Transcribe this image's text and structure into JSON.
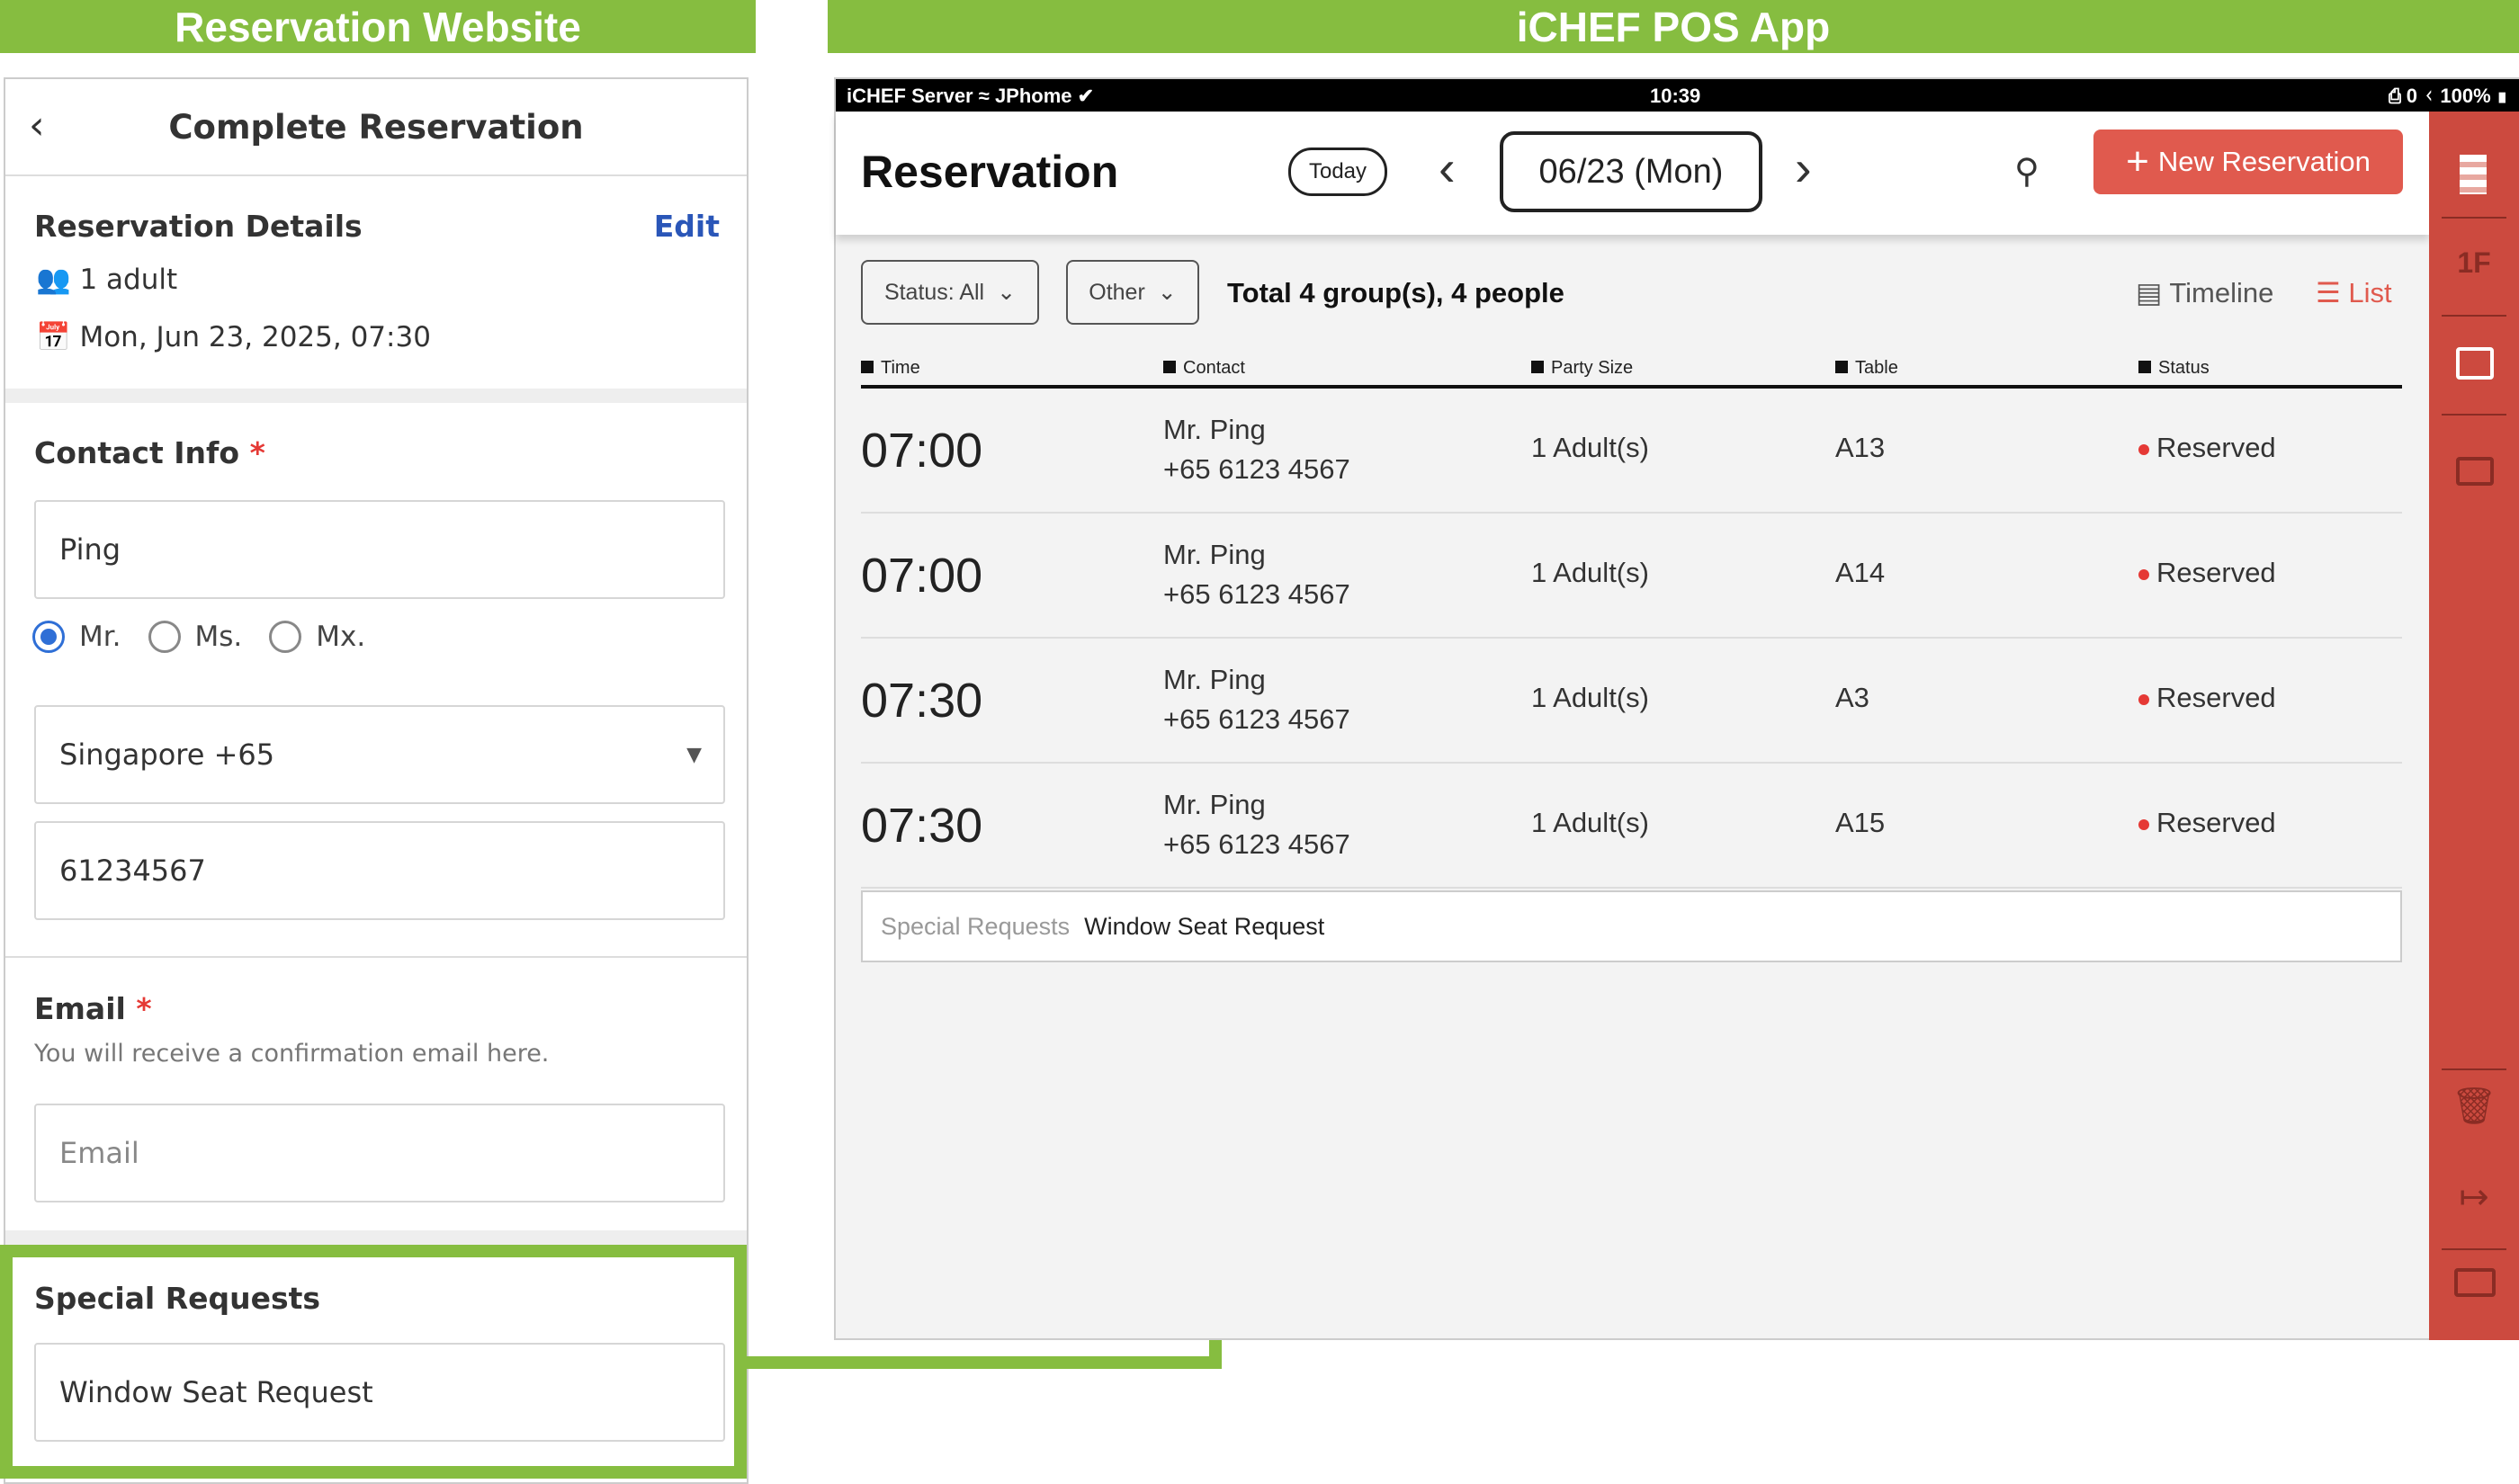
{
  "banners": {
    "left": "Reservation Website",
    "right": "iCHEF POS App"
  },
  "website": {
    "title": "Complete Reservation",
    "details_title": "Reservation Details",
    "edit": "Edit",
    "party": "1 adult",
    "datetime": "Mon, Jun 23, 2025, 07:30",
    "contact_title": "Contact Info",
    "required": "*",
    "name_value": "Ping",
    "salutations": [
      {
        "label": "Mr.",
        "selected": true
      },
      {
        "label": "Ms.",
        "selected": false
      },
      {
        "label": "Mx.",
        "selected": false
      }
    ],
    "country_code": "Singapore +65",
    "phone_value": "61234567",
    "email_title": "Email",
    "email_hint": "You will receive a confirmation email here.",
    "email_placeholder": "Email",
    "special_title": "Special Requests",
    "special_value": "Window Seat Request"
  },
  "pos": {
    "status_bar": {
      "left": "iCHEF Server",
      "wifi": "JPhome",
      "time": "10:39",
      "printer": "0",
      "battery": "100%"
    },
    "title": "Reservation",
    "today": "Today",
    "date": "06/23 (Mon)",
    "new_reservation": "New Reservation",
    "filters": {
      "status": "Status: All",
      "other": "Other"
    },
    "summary": "Total 4 group(s), 4 people",
    "views": {
      "timeline": "Timeline",
      "list": "List",
      "active": "List"
    },
    "columns": [
      "Time",
      "Contact",
      "Party Size",
      "Table",
      "Status"
    ],
    "rows": [
      {
        "time": "07:00",
        "name": "Mr. Ping",
        "phone": "+65 6123 4567",
        "party": "1 Adult(s)",
        "table": "A13",
        "status": "Reserved"
      },
      {
        "time": "07:00",
        "name": "Mr. Ping",
        "phone": "+65 6123 4567",
        "party": "1 Adult(s)",
        "table": "A14",
        "status": "Reserved"
      },
      {
        "time": "07:30",
        "name": "Mr. Ping",
        "phone": "+65 6123 4567",
        "party": "1 Adult(s)",
        "table": "A3",
        "status": "Reserved"
      },
      {
        "time": "07:30",
        "name": "Mr. Ping",
        "phone": "+65 6123 4567",
        "party": "1 Adult(s)",
        "table": "A15",
        "status": "Reserved"
      }
    ],
    "special_label": "Special Requests",
    "special_value": "Window Seat Request",
    "sidebar": {
      "floor": "1F"
    },
    "colors": {
      "accent": "#e05a4e",
      "sidebar": "#cc4a3f",
      "highlight": "#86bd40"
    }
  }
}
